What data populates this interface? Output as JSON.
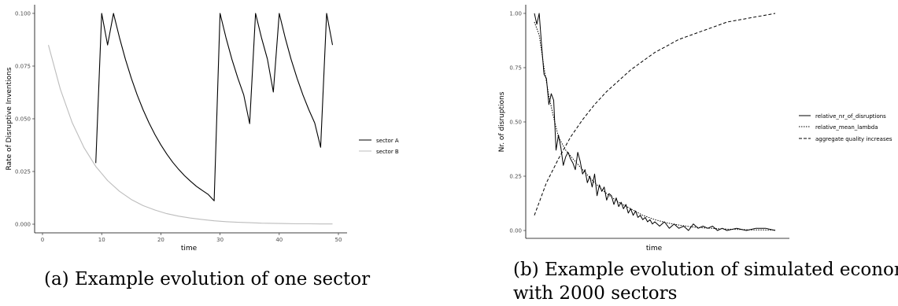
{
  "captions": {
    "left": "(a) Example evolution of one sector",
    "right_line1": "(b) Example evolution of simulated economy",
    "right_line2": "with 2000 sectors"
  },
  "chart_data": [
    {
      "type": "line",
      "xlabel": "time",
      "ylabel": "Rate of Disruptive Inventions",
      "xlim": [
        0,
        50
      ],
      "ylim": [
        0,
        0.1
      ],
      "xticks": [
        0,
        10,
        20,
        30,
        40,
        50
      ],
      "yticks": [
        "0.000",
        "0.025",
        "0.050",
        "0.075",
        "0.100"
      ],
      "grid": false,
      "legend_position": "right",
      "series": [
        {
          "name": "sector A",
          "color": "#000000",
          "x": [
            9,
            10,
            11,
            12,
            13,
            14,
            15,
            16,
            17,
            18,
            19,
            20,
            21,
            22,
            23,
            24,
            25,
            26,
            27,
            28,
            29,
            30,
            31,
            32,
            33,
            34,
            35,
            36,
            37,
            38,
            39,
            40,
            41,
            42,
            43,
            44,
            45,
            46,
            47,
            48,
            49
          ],
          "y": [
            0.029,
            0.1,
            0.085,
            0.1,
            0.0885,
            0.0783,
            0.0693,
            0.0613,
            0.0543,
            0.048,
            0.0425,
            0.0376,
            0.0333,
            0.0294,
            0.026,
            0.023,
            0.0204,
            0.018,
            0.016,
            0.0141,
            0.0111,
            0.1,
            0.0885,
            0.0783,
            0.0693,
            0.0613,
            0.0477,
            0.1,
            0.0885,
            0.0783,
            0.0627,
            0.1,
            0.0885,
            0.0783,
            0.0693,
            0.0613,
            0.0543,
            0.048,
            0.0365,
            0.1,
            0.085
          ]
        },
        {
          "name": "sector B",
          "color": "#bdbdbd",
          "x": [
            1,
            3,
            5,
            7,
            9,
            11,
            13,
            15,
            17,
            19,
            21,
            23,
            25,
            27,
            29,
            31,
            33,
            35,
            37,
            39,
            41,
            43,
            45,
            47,
            49
          ],
          "y": [
            0.085,
            0.0641,
            0.0483,
            0.0364,
            0.0274,
            0.0207,
            0.0156,
            0.0117,
            0.0088,
            0.0067,
            0.005,
            0.0038,
            0.0029,
            0.0022,
            0.0016,
            0.0012,
            0.0009,
            0.0007,
            0.0005,
            0.0004,
            0.0003,
            0.0002,
            0.0002,
            0.0001,
            0.0001
          ]
        }
      ]
    },
    {
      "type": "line",
      "xlabel": "time",
      "ylabel": "Nr. of disruptions",
      "xlim": [
        0,
        100
      ],
      "ylim": [
        0,
        1
      ],
      "yticks": [
        "0.00",
        "0.25",
        "0.50",
        "0.75",
        "1.00"
      ],
      "grid": false,
      "legend_position": "right",
      "series": [
        {
          "name": "relative_nr_of_disruptions",
          "dash": "solid",
          "x": [
            0,
            1,
            2,
            3,
            4,
            5,
            6,
            7,
            8,
            9,
            10,
            11,
            12,
            13,
            14,
            15,
            16,
            17,
            18,
            19,
            20,
            21,
            22,
            23,
            24,
            25,
            26,
            27,
            28,
            29,
            30,
            31,
            32,
            33,
            34,
            35,
            36,
            37,
            38,
            39,
            40,
            41,
            42,
            43,
            44,
            45,
            46,
            47,
            48,
            49,
            50,
            52,
            54,
            56,
            58,
            60,
            62,
            64,
            66,
            68,
            70,
            72,
            74,
            76,
            78,
            80,
            84,
            88,
            92,
            96,
            100
          ],
          "y": [
            1.0,
            0.95,
            1.0,
            0.85,
            0.72,
            0.7,
            0.58,
            0.63,
            0.6,
            0.37,
            0.44,
            0.38,
            0.3,
            0.34,
            0.36,
            0.33,
            0.31,
            0.28,
            0.36,
            0.32,
            0.26,
            0.28,
            0.22,
            0.25,
            0.2,
            0.26,
            0.16,
            0.21,
            0.18,
            0.2,
            0.14,
            0.17,
            0.16,
            0.12,
            0.15,
            0.11,
            0.13,
            0.1,
            0.12,
            0.08,
            0.1,
            0.07,
            0.09,
            0.06,
            0.07,
            0.05,
            0.06,
            0.04,
            0.05,
            0.03,
            0.04,
            0.02,
            0.04,
            0.01,
            0.03,
            0.01,
            0.02,
            0.0,
            0.03,
            0.01,
            0.02,
            0.01,
            0.02,
            0.0,
            0.01,
            0.0,
            0.01,
            0.0,
            0.01,
            0.01,
            0.0
          ]
        },
        {
          "name": "relative_mean_lambda",
          "dash": "dotted",
          "x": [
            0,
            2,
            4,
            6,
            8,
            10,
            13,
            16,
            20,
            25,
            30,
            35,
            40,
            45,
            50,
            55,
            60,
            65,
            70,
            80,
            90,
            100
          ],
          "y": [
            0.96,
            0.9,
            0.75,
            0.62,
            0.52,
            0.43,
            0.37,
            0.33,
            0.28,
            0.22,
            0.17,
            0.13,
            0.1,
            0.07,
            0.05,
            0.035,
            0.025,
            0.017,
            0.012,
            0.006,
            0.003,
            0.002
          ]
        },
        {
          "name": "aggregate quality increases",
          "dash": "dashed",
          "x": [
            0,
            5,
            10,
            15,
            20,
            25,
            30,
            35,
            40,
            45,
            50,
            55,
            60,
            65,
            70,
            75,
            80,
            85,
            90,
            95,
            100
          ],
          "y": [
            0.07,
            0.22,
            0.33,
            0.43,
            0.51,
            0.58,
            0.64,
            0.69,
            0.74,
            0.78,
            0.82,
            0.85,
            0.88,
            0.9,
            0.92,
            0.94,
            0.96,
            0.97,
            0.98,
            0.99,
            1.0
          ]
        }
      ]
    }
  ]
}
